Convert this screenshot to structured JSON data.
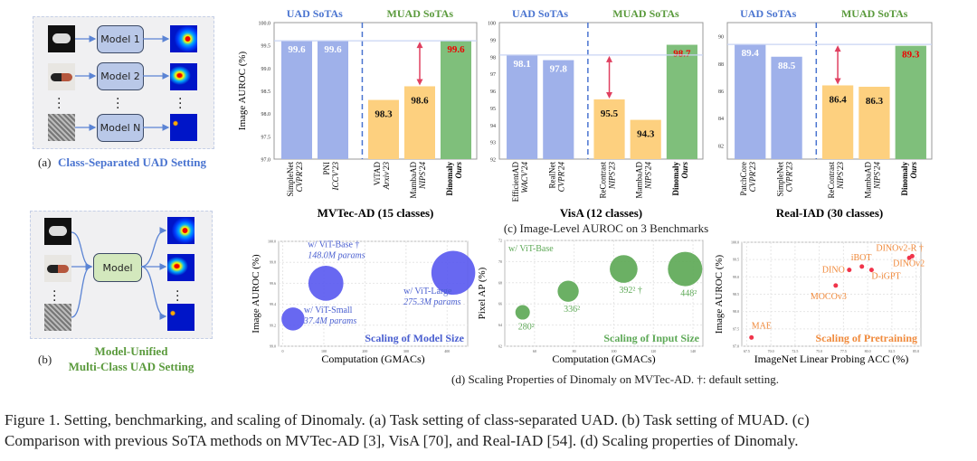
{
  "panel_a": {
    "models": [
      "Model 1",
      "Model 2",
      "Model N"
    ],
    "label": "(a)",
    "caption": "Class-Separated UAD Setting"
  },
  "panel_b": {
    "model": "Model",
    "label": "(b)",
    "caption_line1": "Model-Unified",
    "caption_line2": "Multi-Class UAD Setting"
  },
  "colors": {
    "uad": "#9fb1ea",
    "muad": "#fdd07f",
    "ours": "#7fbf7b",
    "uad_text": "#4a74d0",
    "muad_text": "#5a9a3c",
    "arrow": "#e04060",
    "scale_size": "#5b5bf0",
    "scale_input": "#5ea957",
    "scale_pretrain": "#f0344a",
    "pretrain_text": "#f08a3c"
  },
  "caption_c": "(c) Image-Level AUROC on 3 Benchmarks",
  "caption_d": "(d) Scaling Properties of Dinomaly on MVTec-AD. †: default setting.",
  "figure_caption_line1": "Figure 1.  Setting, benchmarking, and scaling of Dinomaly.  (a) Task setting of class-separated UAD. (b) Task setting of MUAD. (c)",
  "figure_caption_line2": "Comparison with previous SoTA methods on MVTec-AD [3], VisA [70], and Real-IAD [54]. (d) Scaling properties of Dinomaly.",
  "chart_data": [
    {
      "type": "bar",
      "title": "MVTec-AD (15 classes)",
      "ylabel": "Image AUROC (%)",
      "ylim": [
        97,
        100
      ],
      "yticks": [
        "97.0",
        "97.5",
        "98.0",
        "98.5",
        "99.0",
        "99.5",
        "100.0"
      ],
      "group_labels": [
        "UAD SoTAs",
        "MUAD SoTAs"
      ],
      "categories": [
        [
          "SimpleNet",
          "CVPR'23"
        ],
        [
          "PNI",
          "ICCV'23"
        ],
        [
          "ViTAD",
          "Arxiv'23"
        ],
        [
          "MambaAD",
          "NIPS'24"
        ],
        [
          "Dinomaly",
          "Ours"
        ]
      ],
      "groups": [
        "uad",
        "uad",
        "muad",
        "muad",
        "ours"
      ],
      "values": [
        99.6,
        99.6,
        98.3,
        98.6,
        99.6
      ],
      "labels": [
        "99.6",
        "99.6",
        "98.3",
        "98.6",
        "99.6"
      ],
      "reference": 99.6,
      "gap_from": 98.6
    },
    {
      "type": "bar",
      "title": "VisA (12 classes)",
      "ylabel": "",
      "ylim": [
        92,
        100
      ],
      "yticks": [
        "92",
        "93",
        "94",
        "95",
        "96",
        "97",
        "98",
        "99",
        "100"
      ],
      "group_labels": [
        "UAD SoTAs",
        "MUAD SoTAs"
      ],
      "categories": [
        [
          "EfficientAD",
          "WACV'24"
        ],
        [
          "RealNet",
          "CVPR'24"
        ],
        [
          "ReContrast",
          "NIPS'23"
        ],
        [
          "MambaAD",
          "NIPS'24"
        ],
        [
          "Dinomaly",
          "Ours"
        ]
      ],
      "groups": [
        "uad",
        "uad",
        "muad",
        "muad",
        "ours"
      ],
      "values": [
        98.1,
        97.8,
        95.5,
        94.3,
        98.7
      ],
      "labels": [
        "98.1",
        "97.8",
        "95.5",
        "94.3",
        "98.7"
      ],
      "reference": 98.1,
      "gap_from": 95.5
    },
    {
      "type": "bar",
      "title": "Real-IAD (30 classes)",
      "ylabel": "",
      "ylim": [
        81,
        91
      ],
      "yticks": [
        "82",
        "84",
        "86",
        "88",
        "90"
      ],
      "group_labels": [
        "UAD SoTAs",
        "MUAD SoTAs"
      ],
      "categories": [
        [
          "PatchCore",
          "CVPR'23"
        ],
        [
          "SimpleNet",
          "CVPR'23"
        ],
        [
          "ReContrast",
          "NIPS'23"
        ],
        [
          "MambaAD",
          "NIPS'24"
        ],
        [
          "Dinomaly",
          "Ours"
        ]
      ],
      "groups": [
        "uad",
        "uad",
        "muad",
        "muad",
        "ours"
      ],
      "values": [
        89.4,
        88.5,
        86.4,
        86.3,
        89.3
      ],
      "labels": [
        "89.4",
        "88.5",
        "86.4",
        "86.3",
        "89.3"
      ],
      "reference": 89.4,
      "gap_from": 86.4
    },
    {
      "type": "scatter",
      "title": "Scaling of Model Size",
      "xlabel": "Computation (GMACs)",
      "ylabel": "Image AUROC (%)",
      "xlim": [
        -10,
        450
      ],
      "ylim": [
        99.0,
        100.0
      ],
      "xticks": [
        "0",
        "100",
        "200",
        "300",
        "400"
      ],
      "yticks": [
        "99.0",
        "99.2",
        "99.4",
        "99.6",
        "99.8",
        "100.0"
      ],
      "points": [
        {
          "x": 25,
          "y": 99.26,
          "size": 37.4,
          "label1": "w/ ViT-Small",
          "label2": "37.4M params"
        },
        {
          "x": 105,
          "y": 99.6,
          "size": 148.0,
          "label1": "w/ ViT-Base †",
          "label2": "148.0M params"
        },
        {
          "x": 415,
          "y": 99.7,
          "size": 275.3,
          "label1": "w/ ViT-Large",
          "label2": "275.3M params"
        }
      ]
    },
    {
      "type": "scatter",
      "title": "Scaling of Input Size",
      "note": "w/ ViT-Base",
      "xlabel": "Computation (GMACs)",
      "ylabel": "Pixel AP (%)",
      "xlim": [
        45,
        145
      ],
      "ylim": [
        62,
        72
      ],
      "xticks": [
        "60",
        "80",
        "100",
        "120",
        "140"
      ],
      "yticks": [
        "62",
        "64",
        "66",
        "68",
        "70",
        "72"
      ],
      "points": [
        {
          "x": 54,
          "y": 65.2,
          "size": 280,
          "label1": "280²"
        },
        {
          "x": 77,
          "y": 67.2,
          "size": 336,
          "label1": "336²"
        },
        {
          "x": 105,
          "y": 69.3,
          "size": 392,
          "label1": "392² †"
        },
        {
          "x": 136,
          "y": 69.3,
          "size": 448,
          "label1": "448²"
        }
      ]
    },
    {
      "type": "scatter",
      "title": "Scaling of Pretraining",
      "xlabel": "ImageNet Linear Probing ACC (%)",
      "ylabel": "Image AUROC (%)",
      "xlim": [
        67,
        85.5
      ],
      "ylim": [
        97,
        100
      ],
      "xticks": [
        "67.5",
        "70.0",
        "72.5",
        "75.0",
        "77.5",
        "80.0",
        "82.5",
        "85.0"
      ],
      "yticks": [
        "97.0",
        "97.5",
        "98.0",
        "98.5",
        "99.0",
        "99.5",
        "100.0"
      ],
      "points": [
        {
          "x": 68.0,
          "y": 97.25,
          "label1": "MAE"
        },
        {
          "x": 76.7,
          "y": 98.75,
          "label1": "MOCOv3"
        },
        {
          "x": 78.1,
          "y": 99.2,
          "label1": "DINO"
        },
        {
          "x": 79.4,
          "y": 99.3,
          "label1": "iBOT"
        },
        {
          "x": 80.4,
          "y": 99.2,
          "label1": "D-iGPT"
        },
        {
          "x": 84.3,
          "y": 99.55,
          "label1": "DINOv2"
        },
        {
          "x": 84.6,
          "y": 99.6,
          "label1": "DINOv2-R †"
        }
      ]
    }
  ]
}
